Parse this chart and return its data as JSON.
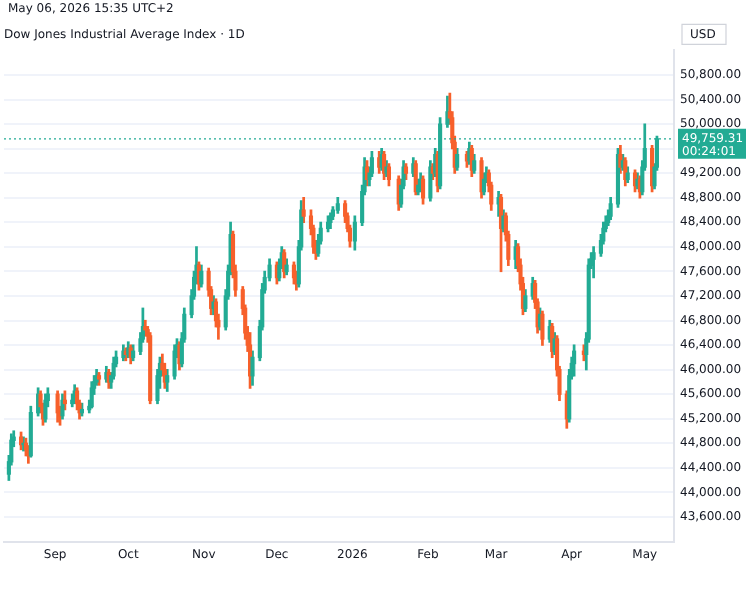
{
  "chart_data": {
    "type": "candlestick",
    "title": "Dow Jones Industrial Average Index · 1D",
    "ylabel": "USD",
    "annotations": [
      "May 06, 2026 15:35 UTC+2",
      "00:24:01"
    ],
    "xlim": [
      "2025-08-11",
      "2026-05-13"
    ],
    "xticks": [
      {
        "value": "2025-09-01",
        "label": "Sep"
      },
      {
        "value": "2025-10-01",
        "label": "Oct"
      },
      {
        "value": "2025-11-01",
        "label": "Nov"
      },
      {
        "value": "2025-12-01",
        "label": "Dec"
      },
      {
        "value": "2026-01-01",
        "label": "2026"
      },
      {
        "value": "2026-02-01",
        "label": "Feb"
      },
      {
        "value": "2026-03-01",
        "label": "Mar"
      },
      {
        "value": "2026-04-01",
        "label": "Apr"
      },
      {
        "value": "2026-05-01",
        "label": "May"
      }
    ],
    "ylim": [
      43200,
      51200
    ],
    "yticks": [
      {
        "value": 43600,
        "label": "43,600.00"
      },
      {
        "value": 44000,
        "label": "44,000.00"
      },
      {
        "value": 44400,
        "label": "44,400.00"
      },
      {
        "value": 44800,
        "label": "44,800.00"
      },
      {
        "value": 45200,
        "label": "45,200.00"
      },
      {
        "value": 45600,
        "label": "45,600.00"
      },
      {
        "value": 46000,
        "label": "46,000.00"
      },
      {
        "value": 46400,
        "label": "46,400.00"
      },
      {
        "value": 46800,
        "label": "46,800.00"
      },
      {
        "value": 47200,
        "label": "47,200.00"
      },
      {
        "value": 47600,
        "label": "47,600.00"
      },
      {
        "value": 48000,
        "label": "48,000.00"
      },
      {
        "value": 48400,
        "label": "48,400.00"
      },
      {
        "value": 48800,
        "label": "48,800.00"
      },
      {
        "value": 49200,
        "label": "49,200.00"
      },
      {
        "value": 49600,
        "label": null
      },
      {
        "value": 50000,
        "label": "50,000.00"
      },
      {
        "value": 50400,
        "label": "50,400.00"
      },
      {
        "value": 50800,
        "label": "50,800.00"
      }
    ],
    "grid": "y",
    "legend": false,
    "ref_lines": [
      {
        "axis": "y",
        "value": 49759.31,
        "label": "49,759.31",
        "color": "#22ab94",
        "line_style": "dotted"
      }
    ],
    "x": [
      "2025-08-13",
      "2025-08-14",
      "2025-08-15",
      "2025-08-18",
      "2025-08-19",
      "2025-08-20",
      "2025-08-21",
      "2025-08-22",
      "2025-08-25",
      "2025-08-26",
      "2025-08-27",
      "2025-08-28",
      "2025-08-29",
      "2025-09-02",
      "2025-09-03",
      "2025-09-04",
      "2025-09-05",
      "2025-09-08",
      "2025-09-09",
      "2025-09-10",
      "2025-09-11",
      "2025-09-12",
      "2025-09-15",
      "2025-09-16",
      "2025-09-17",
      "2025-09-18",
      "2025-09-19",
      "2025-09-22",
      "2025-09-23",
      "2025-09-24",
      "2025-09-25",
      "2025-09-26",
      "2025-09-29",
      "2025-09-30",
      "2025-10-01",
      "2025-10-02",
      "2025-10-03",
      "2025-10-06",
      "2025-10-07",
      "2025-10-08",
      "2025-10-09",
      "2025-10-10",
      "2025-10-13",
      "2025-10-14",
      "2025-10-15",
      "2025-10-16",
      "2025-10-17",
      "2025-10-20",
      "2025-10-21",
      "2025-10-22",
      "2025-10-23",
      "2025-10-24",
      "2025-10-27",
      "2025-10-28",
      "2025-10-29",
      "2025-10-30",
      "2025-10-31",
      "2025-11-03",
      "2025-11-04",
      "2025-11-05",
      "2025-11-06",
      "2025-11-07",
      "2025-11-10",
      "2025-11-11",
      "2025-11-12",
      "2025-11-13",
      "2025-11-14",
      "2025-11-17",
      "2025-11-18",
      "2025-11-19",
      "2025-11-20",
      "2025-11-21",
      "2025-11-24",
      "2025-11-25",
      "2025-11-26",
      "2025-11-28",
      "2025-12-01",
      "2025-12-02",
      "2025-12-03",
      "2025-12-04",
      "2025-12-05",
      "2025-12-08",
      "2025-12-09",
      "2025-12-10",
      "2025-12-11",
      "2025-12-12",
      "2025-12-15",
      "2025-12-16",
      "2025-12-17",
      "2025-12-18",
      "2025-12-19",
      "2025-12-22",
      "2025-12-23",
      "2025-12-24",
      "2025-12-26",
      "2025-12-29",
      "2025-12-30",
      "2025-12-31",
      "2026-01-02",
      "2026-01-05",
      "2026-01-06",
      "2026-01-07",
      "2026-01-08",
      "2026-01-09",
      "2026-01-12",
      "2026-01-13",
      "2026-01-14",
      "2026-01-15",
      "2026-01-16",
      "2026-01-20",
      "2026-01-21",
      "2026-01-22",
      "2026-01-23",
      "2026-01-26",
      "2026-01-27",
      "2026-01-28",
      "2026-01-29",
      "2026-01-30",
      "2026-02-02",
      "2026-02-03",
      "2026-02-04",
      "2026-02-05",
      "2026-02-06",
      "2026-02-09",
      "2026-02-10",
      "2026-02-11",
      "2026-02-12",
      "2026-02-13",
      "2026-02-17",
      "2026-02-18",
      "2026-02-19",
      "2026-02-20",
      "2026-02-23",
      "2026-02-24",
      "2026-02-25",
      "2026-02-26",
      "2026-02-27",
      "2026-03-02",
      "2026-03-03",
      "2026-03-04",
      "2026-03-05",
      "2026-03-06",
      "2026-03-09",
      "2026-03-10",
      "2026-03-11",
      "2026-03-12",
      "2026-03-13",
      "2026-03-16",
      "2026-03-17",
      "2026-03-18",
      "2026-03-19",
      "2026-03-20",
      "2026-03-23",
      "2026-03-24",
      "2026-03-25",
      "2026-03-26",
      "2026-03-27",
      "2026-03-30",
      "2026-03-31",
      "2026-04-01",
      "2026-04-02",
      "2026-04-06",
      "2026-04-07",
      "2026-04-08",
      "2026-04-09",
      "2026-04-10",
      "2026-04-13",
      "2026-04-14",
      "2026-04-15",
      "2026-04-16",
      "2026-04-17",
      "2026-04-20",
      "2026-04-21",
      "2026-04-22",
      "2026-04-23",
      "2026-04-24",
      "2026-04-27",
      "2026-04-28",
      "2026-04-29",
      "2026-04-30",
      "2026-05-01",
      "2026-05-04",
      "2026-05-05",
      "2026-05-06"
    ],
    "ohlc": [
      [
        44300,
        44600,
        44200,
        44500
      ],
      [
        44500,
        44950,
        44450,
        44850
      ],
      [
        44850,
        45000,
        44750,
        44900
      ],
      [
        44900,
        44980,
        44700,
        44780
      ],
      [
        44780,
        44900,
        44680,
        44800
      ],
      [
        44800,
        44880,
        44600,
        44700
      ],
      [
        44700,
        44760,
        44480,
        44600
      ],
      [
        44600,
        45400,
        44580,
        45300
      ],
      [
        45300,
        45700,
        45250,
        45600
      ],
      [
        45600,
        45650,
        45300,
        45400
      ],
      [
        45400,
        45450,
        45100,
        45200
      ],
      [
        45200,
        45600,
        45150,
        45500
      ],
      [
        45500,
        45700,
        45400,
        45600
      ],
      [
        45600,
        45650,
        45150,
        45300
      ],
      [
        45300,
        45400,
        45100,
        45250
      ],
      [
        45250,
        45600,
        45200,
        45500
      ],
      [
        45500,
        45650,
        45350,
        45450
      ],
      [
        45450,
        45600,
        45400,
        45500
      ],
      [
        45500,
        45750,
        45450,
        45650
      ],
      [
        45650,
        45700,
        45350,
        45450
      ],
      [
        45450,
        45500,
        45200,
        45300
      ],
      [
        45300,
        45450,
        45250,
        45350
      ],
      [
        45350,
        45500,
        45300,
        45400
      ],
      [
        45400,
        45800,
        45380,
        45700
      ],
      [
        45700,
        45900,
        45600,
        45800
      ],
      [
        45800,
        46000,
        45750,
        45900
      ],
      [
        45900,
        45950,
        45750,
        45850
      ],
      [
        45850,
        46050,
        45800,
        45950
      ],
      [
        45950,
        46000,
        45700,
        45800
      ],
      [
        45800,
        45950,
        45700,
        45900
      ],
      [
        45900,
        46200,
        45850,
        46100
      ],
      [
        46100,
        46300,
        46050,
        46200
      ],
      [
        46200,
        46400,
        46150,
        46300
      ],
      [
        46300,
        46350,
        46150,
        46250
      ],
      [
        46250,
        46450,
        46200,
        46350
      ],
      [
        46350,
        46400,
        46100,
        46200
      ],
      [
        46200,
        46400,
        46150,
        46300
      ],
      [
        46300,
        46600,
        46250,
        46500
      ],
      [
        46500,
        47000,
        46450,
        46700
      ],
      [
        46700,
        46800,
        46550,
        46650
      ],
      [
        46650,
        46700,
        46450,
        46550
      ],
      [
        46550,
        46600,
        45450,
        45500
      ],
      [
        45500,
        46000,
        45450,
        45900
      ],
      [
        45900,
        46200,
        45700,
        46100
      ],
      [
        46100,
        46250,
        45900,
        46000
      ],
      [
        46000,
        46100,
        45700,
        45800
      ],
      [
        45800,
        46000,
        45650,
        45900
      ],
      [
        45900,
        46400,
        45850,
        46300
      ],
      [
        46300,
        46500,
        46200,
        46400
      ],
      [
        46400,
        46450,
        46000,
        46100
      ],
      [
        46100,
        46600,
        46050,
        46500
      ],
      [
        46500,
        47000,
        46450,
        46900
      ],
      [
        46900,
        47300,
        46850,
        47200
      ],
      [
        47200,
        47600,
        47150,
        47500
      ],
      [
        47500,
        48000,
        47400,
        47700
      ],
      [
        47700,
        47750,
        47300,
        47400
      ],
      [
        47400,
        47700,
        47350,
        47600
      ],
      [
        47600,
        47650,
        47200,
        47300
      ],
      [
        47300,
        47350,
        46900,
        47000
      ],
      [
        47000,
        47200,
        46900,
        47100
      ],
      [
        47100,
        47150,
        46700,
        46800
      ],
      [
        46800,
        46900,
        46500,
        46700
      ],
      [
        46700,
        47300,
        46650,
        47200
      ],
      [
        47200,
        47700,
        47150,
        47600
      ],
      [
        47600,
        48400,
        47550,
        48200
      ],
      [
        48200,
        48250,
        47500,
        47600
      ],
      [
        47600,
        47700,
        47200,
        47300
      ],
      [
        47300,
        47350,
        46900,
        47000
      ],
      [
        47000,
        47050,
        46500,
        46600
      ],
      [
        46600,
        46700,
        46300,
        46400
      ],
      [
        46400,
        46600,
        45700,
        45900
      ],
      [
        45900,
        46300,
        45750,
        46200
      ],
      [
        46200,
        46800,
        46150,
        46700
      ],
      [
        46700,
        47400,
        46650,
        47300
      ],
      [
        47300,
        47600,
        47250,
        47500
      ],
      [
        47500,
        47800,
        47450,
        47700
      ],
      [
        47700,
        47750,
        47400,
        47500
      ],
      [
        47500,
        47800,
        47450,
        47700
      ],
      [
        47700,
        48000,
        47650,
        47900
      ],
      [
        47900,
        47950,
        47500,
        47600
      ],
      [
        47600,
        47800,
        47550,
        47700
      ],
      [
        47700,
        47750,
        47400,
        47500
      ],
      [
        47500,
        47600,
        47300,
        47400
      ],
      [
        47400,
        48100,
        47350,
        48000
      ],
      [
        48000,
        48750,
        47950,
        48600
      ],
      [
        48600,
        48800,
        48400,
        48500
      ],
      [
        48500,
        48600,
        48200,
        48300
      ],
      [
        48300,
        48350,
        47900,
        48000
      ],
      [
        48000,
        48100,
        47800,
        47900
      ],
      [
        47900,
        48200,
        47850,
        48100
      ],
      [
        48100,
        48400,
        48050,
        48300
      ],
      [
        48300,
        48500,
        48250,
        48400
      ],
      [
        48400,
        48550,
        48300,
        48500
      ],
      [
        48500,
        48650,
        48450,
        48600
      ],
      [
        48600,
        48800,
        48550,
        48700
      ],
      [
        48700,
        48750,
        48400,
        48500
      ],
      [
        48500,
        48550,
        48250,
        48300
      ],
      [
        48300,
        48350,
        48000,
        48100
      ],
      [
        48100,
        48500,
        47950,
        48400
      ],
      [
        48400,
        49000,
        48350,
        48900
      ],
      [
        48900,
        49450,
        48850,
        49300
      ],
      [
        49300,
        49400,
        49000,
        49100
      ],
      [
        49100,
        49300,
        49000,
        49200
      ],
      [
        49200,
        49550,
        49150,
        49450
      ],
      [
        49450,
        49550,
        49200,
        49300
      ],
      [
        49300,
        49600,
        49250,
        49500
      ],
      [
        49500,
        49550,
        49100,
        49200
      ],
      [
        49200,
        49400,
        49150,
        49300
      ],
      [
        49300,
        49350,
        49000,
        49100
      ],
      [
        49100,
        49150,
        48600,
        48700
      ],
      [
        48700,
        49100,
        48650,
        49000
      ],
      [
        49000,
        49400,
        48950,
        49300
      ],
      [
        49300,
        49350,
        49100,
        49200
      ],
      [
        49200,
        49450,
        49150,
        49350
      ],
      [
        49350,
        49400,
        48850,
        48900
      ],
      [
        48900,
        49100,
        48850,
        49000
      ],
      [
        49000,
        49200,
        48900,
        49100
      ],
      [
        49100,
        49150,
        48700,
        48800
      ],
      [
        48800,
        49400,
        48750,
        49300
      ],
      [
        49300,
        49350,
        49100,
        49200
      ],
      [
        49200,
        49600,
        49150,
        49500
      ],
      [
        49500,
        49550,
        48900,
        49000
      ],
      [
        49000,
        50100,
        48950,
        50000
      ],
      [
        50000,
        50450,
        49950,
        50200
      ],
      [
        50200,
        50500,
        50000,
        50100
      ],
      [
        50100,
        50200,
        49600,
        49700
      ],
      [
        49700,
        49800,
        49200,
        49300
      ],
      [
        49300,
        49600,
        49250,
        49500
      ],
      [
        49500,
        49550,
        49300,
        49400
      ],
      [
        49400,
        49700,
        49350,
        49600
      ],
      [
        49600,
        49650,
        49150,
        49250
      ],
      [
        49250,
        49500,
        49200,
        49400
      ],
      [
        49400,
        49450,
        48800,
        48900
      ],
      [
        48900,
        49200,
        48850,
        49100
      ],
      [
        49100,
        49300,
        49050,
        49200
      ],
      [
        49200,
        49250,
        48900,
        49000
      ],
      [
        49000,
        49050,
        48600,
        48700
      ],
      [
        48700,
        48900,
        48500,
        48800
      ],
      [
        48800,
        48850,
        47600,
        48300
      ],
      [
        48300,
        48600,
        48250,
        48500
      ],
      [
        48500,
        48550,
        48100,
        48200
      ],
      [
        48200,
        48250,
        47700,
        47800
      ],
      [
        47800,
        48100,
        47650,
        48000
      ],
      [
        48000,
        48050,
        47600,
        47700
      ],
      [
        47700,
        47800,
        47300,
        47400
      ],
      [
        47400,
        47500,
        46900,
        47000
      ],
      [
        47000,
        47300,
        46950,
        47200
      ],
      [
        47200,
        47500,
        47150,
        47400
      ],
      [
        47400,
        47450,
        47000,
        47100
      ],
      [
        47100,
        47150,
        46600,
        46700
      ],
      [
        46700,
        47000,
        46650,
        46900
      ],
      [
        46900,
        46950,
        46400,
        46500
      ],
      [
        46500,
        46800,
        46450,
        46700
      ],
      [
        46700,
        46750,
        46200,
        46300
      ],
      [
        46300,
        46600,
        46250,
        46500
      ],
      [
        46500,
        46550,
        45900,
        46000
      ],
      [
        46000,
        46050,
        45500,
        45600
      ],
      [
        45600,
        45650,
        45050,
        45200
      ],
      [
        45200,
        46000,
        45150,
        45900
      ],
      [
        45900,
        46200,
        45850,
        46100
      ],
      [
        46100,
        46400,
        45900,
        46300
      ],
      [
        46300,
        46400,
        46150,
        46250
      ],
      [
        46250,
        46600,
        46000,
        46500
      ],
      [
        46500,
        47800,
        46450,
        47700
      ],
      [
        47700,
        47900,
        47650,
        47800
      ],
      [
        47800,
        48000,
        47500,
        47900
      ],
      [
        47900,
        48200,
        47850,
        48100
      ],
      [
        48100,
        48400,
        48050,
        48300
      ],
      [
        48300,
        48500,
        48250,
        48400
      ],
      [
        48400,
        48600,
        48350,
        48500
      ],
      [
        48500,
        48800,
        48450,
        48700
      ],
      [
        48700,
        49600,
        48650,
        49500
      ],
      [
        49500,
        49650,
        49200,
        49300
      ],
      [
        49300,
        49500,
        49250,
        49400
      ],
      [
        49400,
        49450,
        49000,
        49100
      ],
      [
        49100,
        49300,
        49050,
        49200
      ],
      [
        49200,
        49250,
        48900,
        49000
      ],
      [
        49000,
        49200,
        48950,
        49100
      ],
      [
        49100,
        49150,
        48800,
        48900
      ],
      [
        48900,
        49400,
        48850,
        49300
      ],
      [
        49300,
        50000,
        49250,
        49600
      ],
      [
        49600,
        49650,
        48900,
        49000
      ],
      [
        49000,
        49350,
        48950,
        49300
      ],
      [
        49300,
        49800,
        49250,
        49759.31
      ]
    ],
    "colors": [
      "#22ab94",
      "#22ab94",
      "#22ab94",
      "#f7602b",
      "#22ab94",
      "#f7602b",
      "#f7602b",
      "#22ab94",
      "#22ab94",
      "#f7602b",
      "#f7602b",
      "#22ab94",
      "#22ab94",
      "#f7602b",
      "#f7602b",
      "#22ab94",
      "#f7602b",
      "#22ab94",
      "#22ab94",
      "#f7602b",
      "#f7602b",
      "#22ab94",
      "#22ab94",
      "#22ab94",
      "#22ab94",
      "#22ab94",
      "#f7602b",
      "#22ab94",
      "#f7602b",
      "#22ab94",
      "#22ab94",
      "#22ab94",
      "#22ab94",
      "#f7602b",
      "#22ab94",
      "#f7602b",
      "#22ab94",
      "#22ab94",
      "#22ab94",
      "#f7602b",
      "#f7602b",
      "#f7602b",
      "#22ab94",
      "#22ab94",
      "#f7602b",
      "#f7602b",
      "#22ab94",
      "#22ab94",
      "#22ab94",
      "#f7602b",
      "#22ab94",
      "#22ab94",
      "#22ab94",
      "#22ab94",
      "#22ab94",
      "#f7602b",
      "#22ab94",
      "#f7602b",
      "#f7602b",
      "#22ab94",
      "#f7602b",
      "#f7602b",
      "#22ab94",
      "#22ab94",
      "#22ab94",
      "#f7602b",
      "#f7602b",
      "#f7602b",
      "#f7602b",
      "#f7602b",
      "#f7602b",
      "#22ab94",
      "#22ab94",
      "#22ab94",
      "#22ab94",
      "#22ab94",
      "#f7602b",
      "#22ab94",
      "#22ab94",
      "#f7602b",
      "#22ab94",
      "#f7602b",
      "#f7602b",
      "#22ab94",
      "#22ab94",
      "#f7602b",
      "#f7602b",
      "#f7602b",
      "#f7602b",
      "#22ab94",
      "#22ab94",
      "#22ab94",
      "#22ab94",
      "#22ab94",
      "#22ab94",
      "#f7602b",
      "#f7602b",
      "#f7602b",
      "#22ab94",
      "#22ab94",
      "#22ab94",
      "#f7602b",
      "#22ab94",
      "#22ab94",
      "#f7602b",
      "#22ab94",
      "#f7602b",
      "#22ab94",
      "#f7602b",
      "#f7602b",
      "#22ab94",
      "#22ab94",
      "#f7602b",
      "#22ab94",
      "#f7602b",
      "#22ab94",
      "#22ab94",
      "#f7602b",
      "#22ab94",
      "#f7602b",
      "#22ab94",
      "#f7602b",
      "#22ab94",
      "#22ab94",
      "#f7602b",
      "#f7602b",
      "#f7602b",
      "#22ab94",
      "#f7602b",
      "#22ab94",
      "#f7602b",
      "#22ab94",
      "#f7602b",
      "#22ab94",
      "#22ab94",
      "#f7602b",
      "#f7602b",
      "#22ab94",
      "#f7602b",
      "#22ab94",
      "#f7602b",
      "#f7602b",
      "#22ab94",
      "#f7602b",
      "#f7602b",
      "#f7602b",
      "#22ab94",
      "#22ab94",
      "#f7602b",
      "#f7602b",
      "#22ab94",
      "#f7602b",
      "#22ab94",
      "#f7602b",
      "#22ab94",
      "#f7602b",
      "#f7602b",
      "#f7602b",
      "#22ab94",
      "#22ab94",
      "#22ab94",
      "#f7602b",
      "#22ab94",
      "#22ab94",
      "#22ab94",
      "#22ab94",
      "#22ab94",
      "#22ab94",
      "#22ab94",
      "#22ab94",
      "#22ab94",
      "#22ab94",
      "#f7602b",
      "#22ab94",
      "#f7602b",
      "#22ab94",
      "#f7602b",
      "#22ab94",
      "#f7602b",
      "#22ab94",
      "#22ab94",
      "#f7602b",
      "#22ab94",
      "#22ab94"
    ]
  }
}
